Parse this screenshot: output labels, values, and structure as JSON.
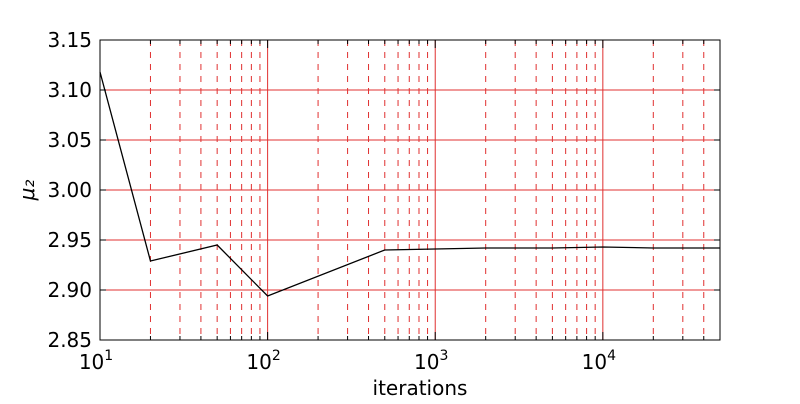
{
  "chart_data": {
    "type": "line",
    "title": "",
    "xlabel": "iterations",
    "ylabel": "μ₂",
    "xscale": "log",
    "xlim": [
      10,
      50000
    ],
    "ylim": [
      2.85,
      3.15
    ],
    "grid": {
      "major_style": "solid",
      "minor_style": "dashed",
      "color": "#e03030"
    },
    "line_color": "#000000",
    "yticks": [
      {
        "value": 2.85,
        "label": "2.85"
      },
      {
        "value": 2.9,
        "label": "2.90"
      },
      {
        "value": 2.95,
        "label": "2.95"
      },
      {
        "value": 3.0,
        "label": "3.00"
      },
      {
        "value": 3.05,
        "label": "3.05"
      },
      {
        "value": 3.1,
        "label": "3.10"
      },
      {
        "value": 3.15,
        "label": "3.15"
      }
    ],
    "xticks": [
      {
        "value": 10,
        "base": "10",
        "exp": "1"
      },
      {
        "value": 100,
        "base": "10",
        "exp": "2"
      },
      {
        "value": 1000,
        "base": "10",
        "exp": "3"
      },
      {
        "value": 10000,
        "base": "10",
        "exp": "4"
      }
    ],
    "series": [
      {
        "x": [
          10,
          20,
          50,
          100,
          500,
          1000,
          2000,
          5000,
          10000,
          20000,
          50000
        ],
        "y": [
          3.118,
          2.929,
          2.945,
          2.894,
          2.94,
          2.941,
          2.942,
          2.942,
          2.943,
          2.942,
          2.942
        ]
      }
    ]
  }
}
